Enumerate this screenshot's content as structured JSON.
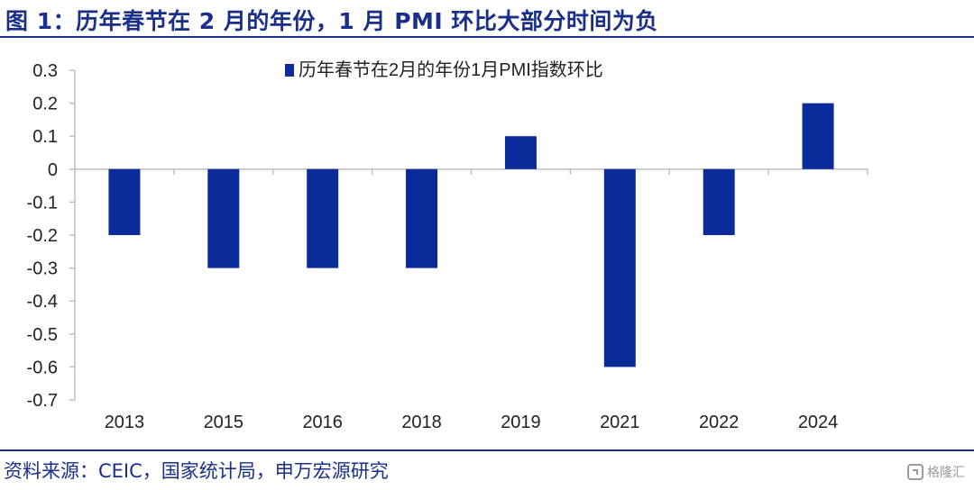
{
  "header": {
    "title": "图 1：历年春节在 2 月的年份，1 月 PMI 环比大部分时间为负"
  },
  "footer": {
    "source": "资料来源：CEIC，国家统计局，申万宏源研究",
    "watermark": "格隆汇"
  },
  "colors": {
    "bar": "#0c2b9a",
    "title": "#1a2f8a",
    "axis": "#bfbfbf",
    "tick_text": "#222222"
  },
  "chart_data": {
    "type": "bar",
    "title": "",
    "xlabel": "",
    "ylabel": "",
    "categories": [
      "2013",
      "2015",
      "2016",
      "2018",
      "2019",
      "2021",
      "2022",
      "2024"
    ],
    "series": [
      {
        "name": "历年春节在2月的年份1月PMI指数环比",
        "values": [
          -0.2,
          -0.3,
          -0.3,
          -0.3,
          0.1,
          -0.6,
          -0.2,
          0.2
        ]
      }
    ],
    "ylim": [
      -0.7,
      0.3
    ],
    "yticks": [
      0.3,
      0.2,
      0.1,
      0,
      -0.1,
      -0.2,
      -0.3,
      -0.4,
      -0.5,
      -0.6,
      -0.7
    ],
    "ytick_labels": [
      "0.3",
      "0.2",
      "0.1",
      "0",
      "-0.1",
      "-0.2",
      "-0.3",
      "-0.4",
      "-0.5",
      "-0.6",
      "-0.7"
    ],
    "grid": false,
    "legend_position": "top-center"
  }
}
